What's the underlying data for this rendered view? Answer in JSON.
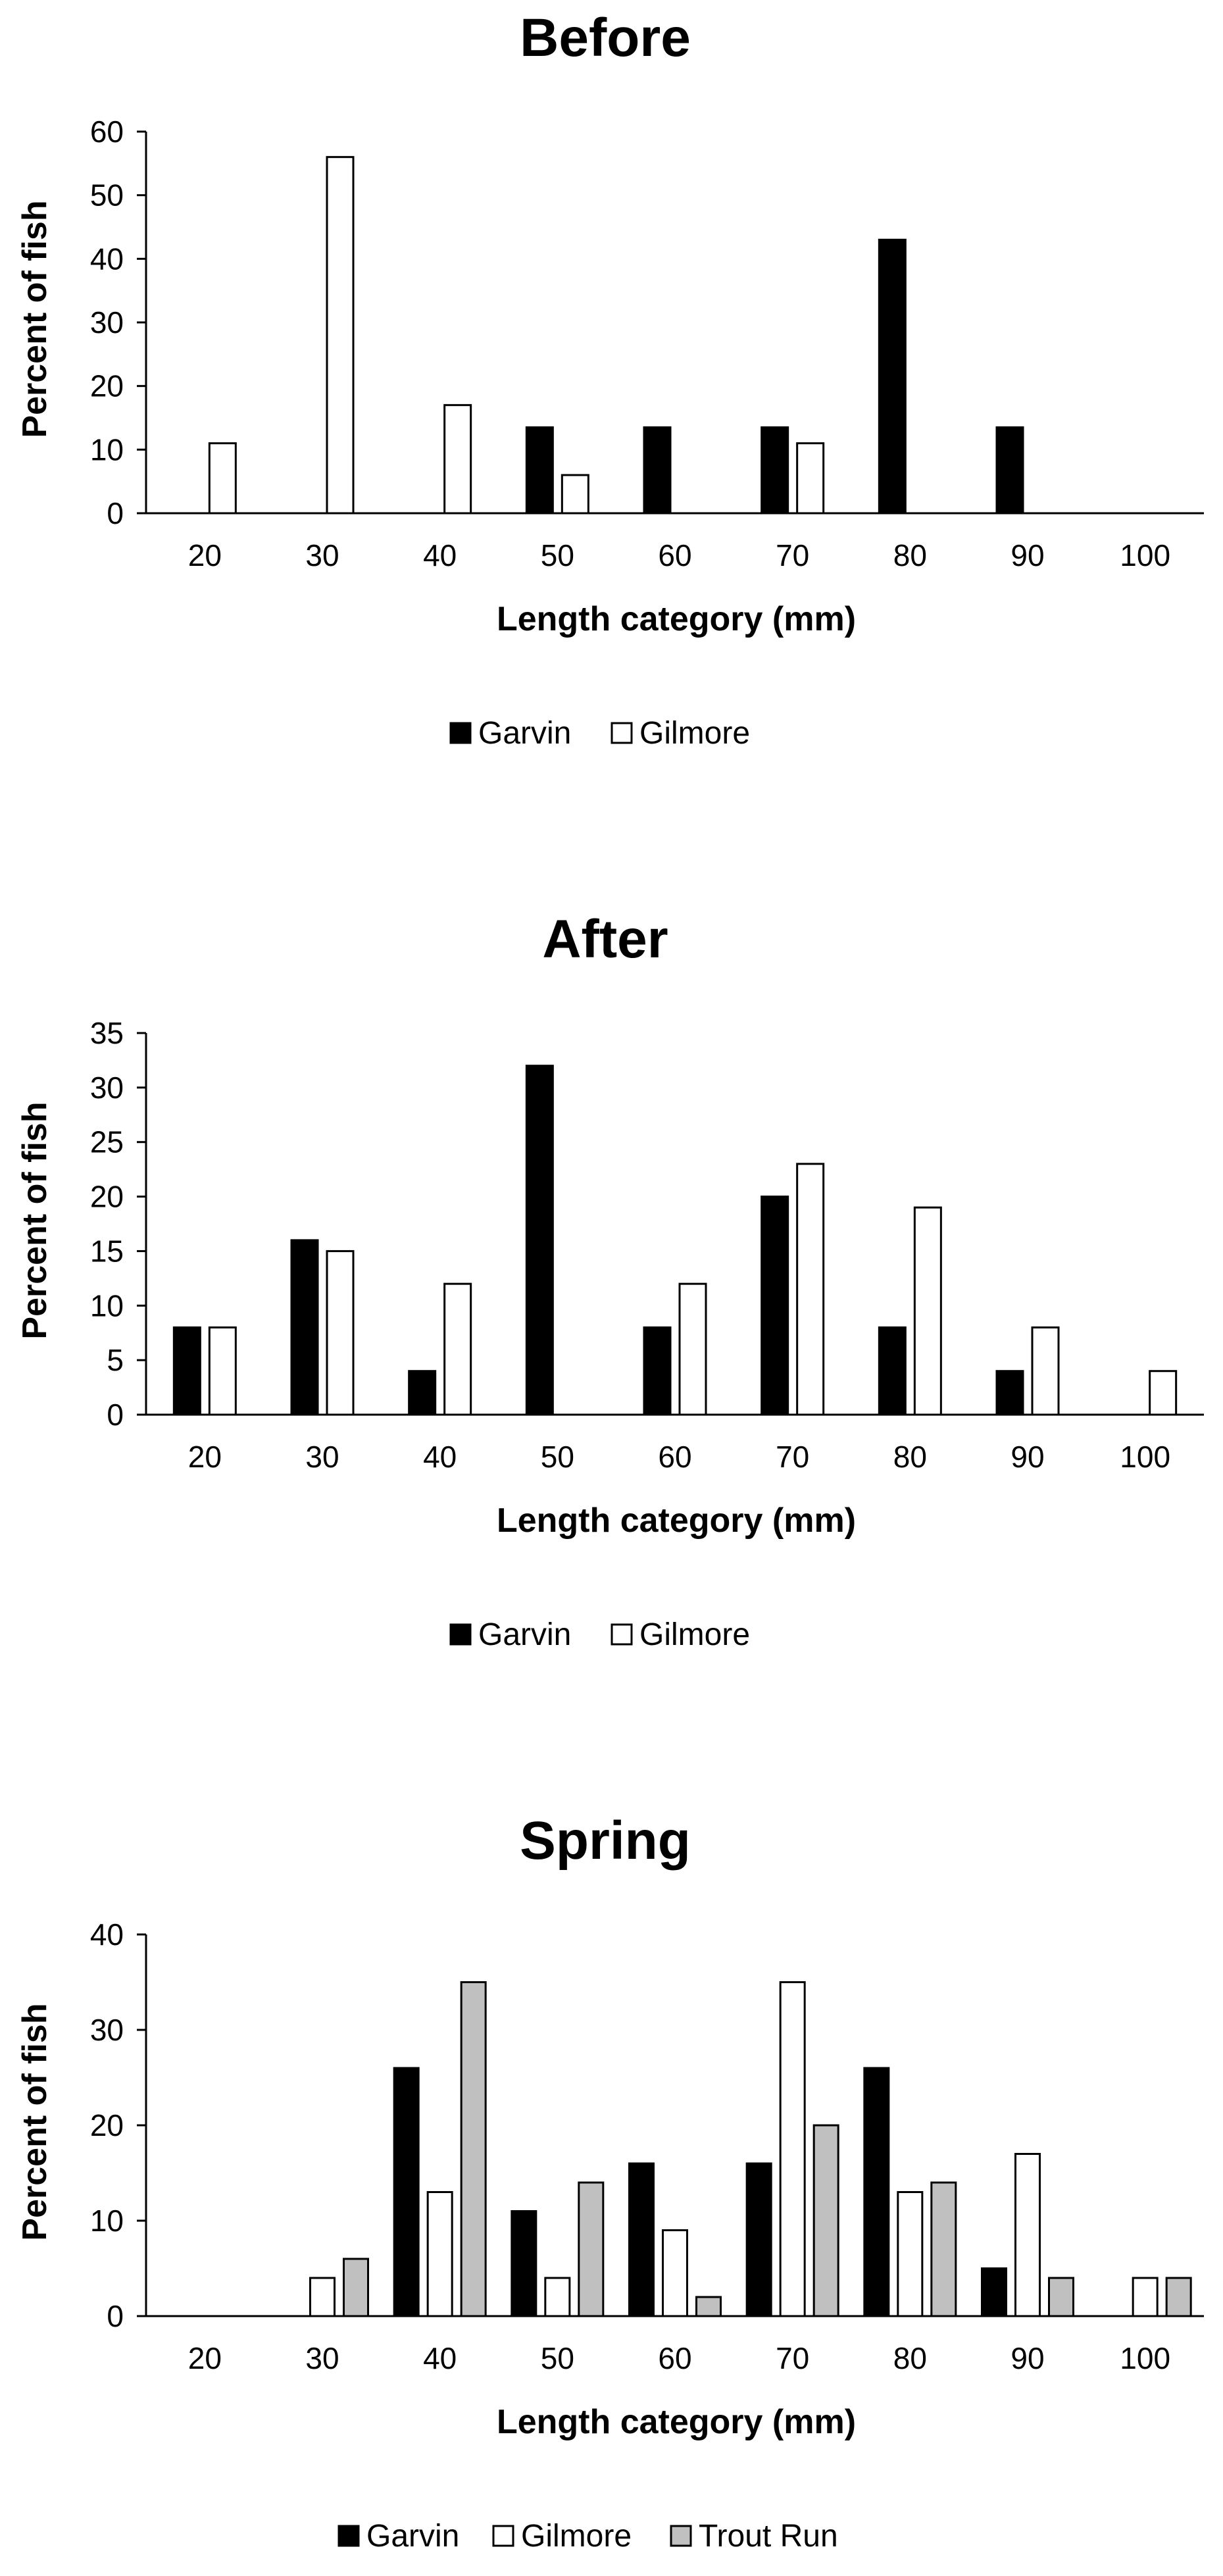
{
  "chart_data": [
    {
      "type": "bar",
      "title": "Before",
      "xlabel": "Length category (mm)",
      "ylabel": "Percent of fish",
      "categories": [
        "20",
        "30",
        "40",
        "50",
        "60",
        "70",
        "80",
        "90",
        "100"
      ],
      "ylim": [
        0,
        60
      ],
      "yticks": [
        "0",
        "10",
        "20",
        "30",
        "40",
        "50",
        "60"
      ],
      "grid": false,
      "legend_position": "bottom",
      "series": [
        {
          "name": "Garvin",
          "color": "#000000",
          "values": [
            0,
            0,
            0,
            13.5,
            13.5,
            13.5,
            43,
            13.5,
            0
          ]
        },
        {
          "name": "Gilmore",
          "color": "#ffffff",
          "values": [
            11,
            56,
            17,
            6,
            0,
            11,
            0,
            0,
            0
          ]
        }
      ]
    },
    {
      "type": "bar",
      "title": "After",
      "xlabel": "Length category (mm)",
      "ylabel": "Percent of fish",
      "categories": [
        "20",
        "30",
        "40",
        "50",
        "60",
        "70",
        "80",
        "90",
        "100"
      ],
      "ylim": [
        0,
        35
      ],
      "yticks": [
        "0",
        "5",
        "10",
        "15",
        "20",
        "25",
        "30",
        "35"
      ],
      "grid": false,
      "legend_position": "bottom",
      "series": [
        {
          "name": "Garvin",
          "color": "#000000",
          "values": [
            8,
            16,
            4,
            32,
            8,
            20,
            8,
            4,
            0
          ]
        },
        {
          "name": "Gilmore",
          "color": "#ffffff",
          "values": [
            8,
            15,
            12,
            0,
            12,
            23,
            19,
            8,
            4
          ]
        }
      ]
    },
    {
      "type": "bar",
      "title": "Spring",
      "xlabel": "Length category (mm)",
      "ylabel": "Percent of fish",
      "categories": [
        "20",
        "30",
        "40",
        "50",
        "60",
        "70",
        "80",
        "90",
        "100"
      ],
      "ylim": [
        0,
        40
      ],
      "yticks": [
        "0",
        "10",
        "20",
        "30",
        "40"
      ],
      "grid": false,
      "legend_position": "bottom",
      "series": [
        {
          "name": "Garvin",
          "color": "#000000",
          "values": [
            0,
            0,
            26,
            11,
            16,
            16,
            26,
            5,
            0
          ]
        },
        {
          "name": "Gilmore",
          "color": "#ffffff",
          "values": [
            0,
            4,
            13,
            4,
            9,
            35,
            13,
            17,
            4
          ]
        },
        {
          "name": "Trout Run",
          "color": "#c0c0c0",
          "values": [
            0,
            6,
            35,
            14,
            2,
            20,
            14,
            4,
            4
          ]
        }
      ]
    }
  ]
}
